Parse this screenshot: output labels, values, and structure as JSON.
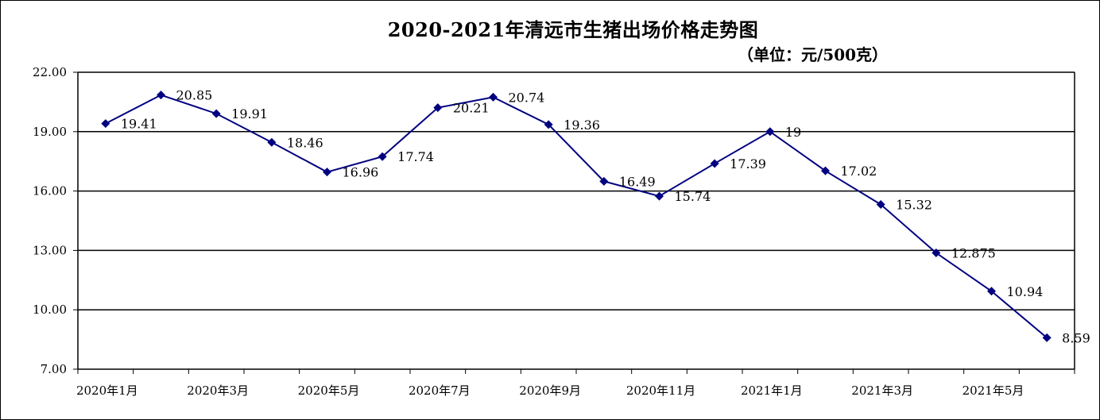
{
  "chart_data": {
    "type": "line",
    "title": "2020-2021年清远市生猪出场价格走势图",
    "subtitle": "（单位：元/500克）",
    "ylim": [
      7,
      22
    ],
    "yticks": [
      "22.00",
      "19.00",
      "16.00",
      "13.00",
      "10.00",
      "7.00"
    ],
    "ytick_values": [
      22,
      19,
      16,
      13,
      10,
      7
    ],
    "xtick_labels": [
      "2020年1月",
      "2020年3月",
      "2020年5月",
      "2020年7月",
      "2020年9月",
      "2020年11月",
      "2021年1月",
      "2021年3月",
      "2021年5月"
    ],
    "grid": "horizontal",
    "series": [
      {
        "values": [
          19.41,
          20.85,
          19.91,
          18.46,
          16.96,
          17.74,
          20.21,
          20.74,
          19.36,
          16.49,
          15.74,
          17.39,
          19,
          17.02,
          15.32,
          12.875,
          10.94,
          8.59
        ],
        "labels": [
          "19.41",
          "20.85",
          "19.91",
          "18.46",
          "16.96",
          "17.74",
          "20.21",
          "20.74",
          "19.36",
          "16.49",
          "15.74",
          "17.39",
          "19",
          "17.02",
          "15.32",
          "12.875",
          "10.94",
          "8.59"
        ],
        "color": "#000080"
      }
    ]
  }
}
